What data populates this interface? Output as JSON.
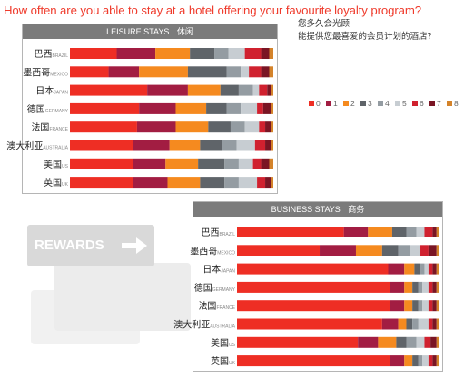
{
  "title": "How often are you able to stay at a hotel offering your favourite loyalty program?",
  "question_cn": [
    "您多久会光顾",
    "能提供您最喜爱的会员计划的酒店?"
  ],
  "rewards_label": "REWARDS",
  "colors": {
    "title": "#ef3b2c",
    "header_bg": "#7b7b7b",
    "frequency": [
      "#ee2e24",
      "#a21d42",
      "#f58a1f",
      "#5f6469",
      "#949ca2",
      "#c7cdd2",
      "#d0212f",
      "#7a1524",
      "#d4832a"
    ]
  },
  "chart_data": [
    {
      "type": "bar",
      "stacked": true,
      "orientation": "horizontal",
      "title_en": "LEISURE STAYS",
      "title_cn": "休闲",
      "legend": {
        "position": "right",
        "labels": [
          "0",
          "1",
          "2",
          "3",
          "4",
          "5",
          "6",
          "7",
          "8"
        ]
      },
      "categories": [
        {
          "cn": "巴西",
          "en": "BRAZIL"
        },
        {
          "cn": "墨西哥",
          "en": "MEXICO"
        },
        {
          "cn": "日本",
          "en": "JAPAN"
        },
        {
          "cn": "德国",
          "en": "GERMANY"
        },
        {
          "cn": "法国",
          "en": "FRANCE"
        },
        {
          "cn": "澳大利亚",
          "en": "AUSTRALIA"
        },
        {
          "cn": "美国",
          "en": "US"
        },
        {
          "cn": "英国",
          "en": "UK"
        }
      ],
      "xlim": [
        0,
        100
      ],
      "series": [
        {
          "name": "0",
          "values": [
            23,
            19,
            38,
            34,
            33,
            31,
            31,
            31
          ]
        },
        {
          "name": "1",
          "values": [
            19,
            15,
            20,
            18,
            19,
            18,
            16,
            17
          ]
        },
        {
          "name": "2",
          "values": [
            17,
            24,
            16,
            15,
            16,
            15,
            16,
            16
          ]
        },
        {
          "name": "3",
          "values": [
            12,
            19,
            9,
            10,
            11,
            11,
            13,
            12
          ]
        },
        {
          "name": "4",
          "values": [
            7,
            7,
            7,
            7,
            7,
            7,
            7,
            7
          ]
        },
        {
          "name": "5",
          "values": [
            8,
            4,
            3,
            8,
            7,
            9,
            7,
            9
          ]
        },
        {
          "name": "6",
          "values": [
            8,
            6,
            4,
            3,
            3,
            5,
            4,
            4
          ]
        },
        {
          "name": "7",
          "values": [
            4,
            4,
            2,
            4,
            3,
            3,
            4,
            3
          ]
        },
        {
          "name": "8",
          "values": [
            2,
            2,
            1,
            1,
            1,
            1,
            2,
            1
          ]
        }
      ]
    },
    {
      "type": "bar",
      "stacked": true,
      "orientation": "horizontal",
      "title_en": "BUSINESS STAYS",
      "title_cn": "商务",
      "categories": [
        {
          "cn": "巴西",
          "en": "BRAZIL"
        },
        {
          "cn": "墨西哥",
          "en": "MEXICO"
        },
        {
          "cn": "日本",
          "en": "JAPAN"
        },
        {
          "cn": "德国",
          "en": "GERMANY"
        },
        {
          "cn": "法国",
          "en": "FRANCE"
        },
        {
          "cn": "澳大利亚",
          "en": "AUSTRALIA"
        },
        {
          "cn": "美国",
          "en": "US"
        },
        {
          "cn": "英国",
          "en": "UK"
        }
      ],
      "xlim": [
        0,
        100
      ],
      "series": [
        {
          "name": "0",
          "values": [
            53,
            41,
            75,
            76,
            76,
            72,
            60,
            76
          ]
        },
        {
          "name": "1",
          "values": [
            12,
            18,
            8,
            7,
            7,
            8,
            10,
            7
          ]
        },
        {
          "name": "2",
          "values": [
            12,
            13,
            5,
            4,
            4,
            4,
            9,
            4
          ]
        },
        {
          "name": "3",
          "values": [
            7,
            8,
            3,
            3,
            3,
            3,
            5,
            3
          ]
        },
        {
          "name": "4",
          "values": [
            5,
            6,
            2,
            2,
            2,
            3,
            5,
            2
          ]
        },
        {
          "name": "5",
          "values": [
            4,
            5,
            2,
            3,
            3,
            5,
            4,
            3
          ]
        },
        {
          "name": "6",
          "values": [
            4,
            4,
            2,
            2,
            2,
            2,
            3,
            2
          ]
        },
        {
          "name": "7",
          "values": [
            2,
            4,
            2,
            2,
            2,
            2,
            3,
            2
          ]
        },
        {
          "name": "8",
          "values": [
            1,
            1,
            1,
            1,
            1,
            1,
            1,
            1
          ]
        }
      ]
    }
  ]
}
